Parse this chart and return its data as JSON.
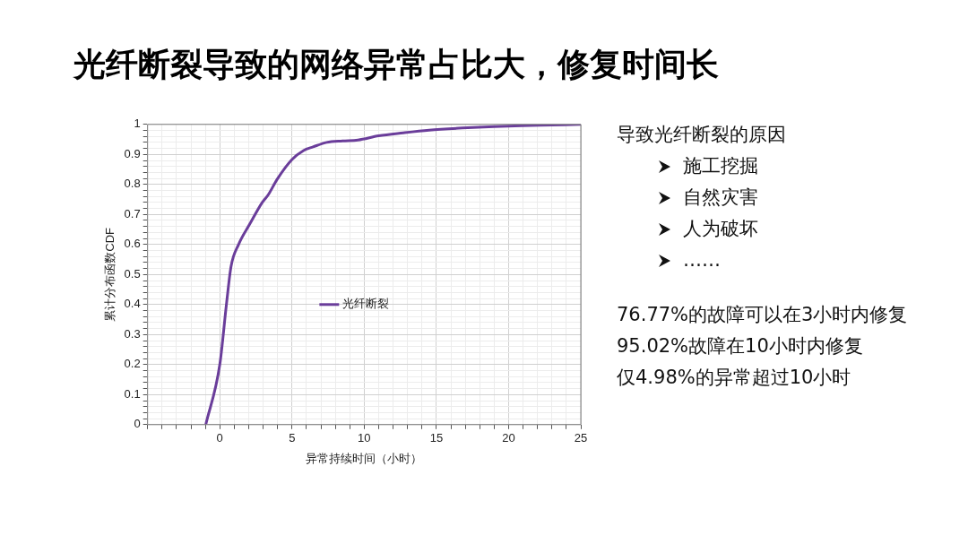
{
  "chart_data": {
    "type": "line",
    "title": "光纤断裂导致的网络异常占比大，修复时间长",
    "xlabel": "异常持续时间（小时）",
    "ylabel": "累计分布函数CDF",
    "x": [
      -0.97,
      0,
      0.47,
      0.78,
      1.3,
      2.1,
      2.94,
      3.35,
      3.97,
      5,
      5.8,
      6.46,
      7.4,
      8.5,
      9.57,
      11,
      12.7,
      14.5,
      16.8,
      19,
      20.9,
      23,
      25
    ],
    "series": [
      {
        "name": "光纤断裂",
        "color": "#6a3d9a",
        "values": [
          0,
          0.2,
          0.405,
          0.527,
          0.6,
          0.67,
          0.74,
          0.765,
          0.817,
          0.883,
          0.913,
          0.925,
          0.94,
          0.945,
          0.948,
          0.962,
          0.972,
          0.981,
          0.988,
          0.993,
          0.996,
          0.998,
          1.0
        ]
      }
    ],
    "xlim": [
      -5,
      25
    ],
    "xticks": [
      {
        "value": -5,
        "label": null
      },
      {
        "value": -4,
        "label": null
      },
      {
        "value": -3,
        "label": null
      },
      {
        "value": -2,
        "label": null
      },
      {
        "value": -1,
        "label": null
      },
      0,
      {
        "value": 1,
        "label": null
      },
      {
        "value": 2,
        "label": null
      },
      {
        "value": 3,
        "label": null
      },
      {
        "value": 4,
        "label": null
      },
      5,
      {
        "value": 6,
        "label": null
      },
      {
        "value": 7,
        "label": null
      },
      {
        "value": 8,
        "label": null
      },
      {
        "value": 9,
        "label": null
      },
      10,
      {
        "value": 11,
        "label": null
      },
      {
        "value": 12,
        "label": null
      },
      {
        "value": 13,
        "label": null
      },
      {
        "value": 14,
        "label": null
      },
      15,
      {
        "value": 16,
        "label": null
      },
      {
        "value": 17,
        "label": null
      },
      {
        "value": 18,
        "label": null
      },
      {
        "value": 19,
        "label": null
      },
      20,
      {
        "value": 21,
        "label": null
      },
      {
        "value": 22,
        "label": null
      },
      {
        "value": 23,
        "label": null
      },
      {
        "value": 24,
        "label": null
      },
      25
    ],
    "ylim": [
      0,
      1
    ],
    "yticks": [
      0,
      {
        "value": 0.02,
        "label": null
      },
      {
        "value": 0.04,
        "label": null
      },
      {
        "value": 0.06,
        "label": null
      },
      {
        "value": 0.08,
        "label": null
      },
      0.1,
      {
        "value": 0.12,
        "label": null
      },
      {
        "value": 0.14,
        "label": null
      },
      {
        "value": 0.16,
        "label": null
      },
      {
        "value": 0.18,
        "label": null
      },
      0.2,
      {
        "value": 0.22,
        "label": null
      },
      {
        "value": 0.24,
        "label": null
      },
      {
        "value": 0.26,
        "label": null
      },
      {
        "value": 0.28,
        "label": null
      },
      0.3,
      {
        "value": 0.32,
        "label": null
      },
      {
        "value": 0.34,
        "label": null
      },
      {
        "value": 0.36,
        "label": null
      },
      {
        "value": 0.38,
        "label": null
      },
      0.4,
      {
        "value": 0.42,
        "label": null
      },
      {
        "value": 0.44,
        "label": null
      },
      {
        "value": 0.46,
        "label": null
      },
      {
        "value": 0.48,
        "label": null
      },
      0.5,
      {
        "value": 0.52,
        "label": null
      },
      {
        "value": 0.54,
        "label": null
      },
      {
        "value": 0.56,
        "label": null
      },
      {
        "value": 0.58,
        "label": null
      },
      0.6,
      {
        "value": 0.62,
        "label": null
      },
      {
        "value": 0.64,
        "label": null
      },
      {
        "value": 0.66,
        "label": null
      },
      {
        "value": 0.68,
        "label": null
      },
      0.7,
      {
        "value": 0.72,
        "label": null
      },
      {
        "value": 0.74,
        "label": null
      },
      {
        "value": 0.76,
        "label": null
      },
      {
        "value": 0.78,
        "label": null
      },
      0.8,
      {
        "value": 0.82,
        "label": null
      },
      {
        "value": 0.84,
        "label": null
      },
      {
        "value": 0.86,
        "label": null
      },
      {
        "value": 0.88,
        "label": null
      },
      0.9,
      {
        "value": 0.92,
        "label": null
      },
      {
        "value": 0.94,
        "label": null
      },
      {
        "value": 0.96,
        "label": null
      },
      {
        "value": 0.98,
        "label": null
      },
      1
    ],
    "grid": true,
    "legend": "center",
    "marker": "none",
    "line_style": "solid",
    "annotations": [
      "导致光纤断裂的原因",
      "施工挖掘",
      "自然灾害",
      "人为破坏",
      "……",
      "76.77%的故障可以在3小时内修复",
      "95.02%故障在10小时内修复",
      "仅4.98%的异常超过10小时"
    ]
  }
}
